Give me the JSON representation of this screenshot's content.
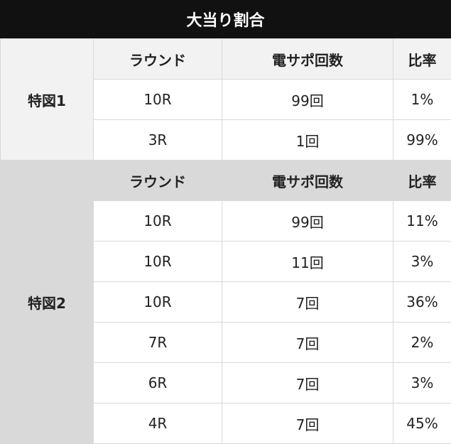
{
  "title": "大当り割合",
  "sections": [
    {
      "label": "特図1",
      "headers": [
        "ラウンド",
        "電サポ回数",
        "比率"
      ],
      "rows": [
        [
          "10R",
          "99回",
          "1%"
        ],
        [
          "3R",
          "1回",
          "99%"
        ]
      ]
    },
    {
      "label": "特図2",
      "headers": [
        "ラウンド",
        "電サポ回数",
        "比率"
      ],
      "rows": [
        [
          "10R",
          "99回",
          "11%"
        ],
        [
          "10R",
          "11回",
          "3%"
        ],
        [
          "10R",
          "7回",
          "36%"
        ],
        [
          "7R",
          "7回",
          "2%"
        ],
        [
          "6R",
          "7回",
          "3%"
        ],
        [
          "4R",
          "7回",
          "45%"
        ]
      ]
    }
  ]
}
